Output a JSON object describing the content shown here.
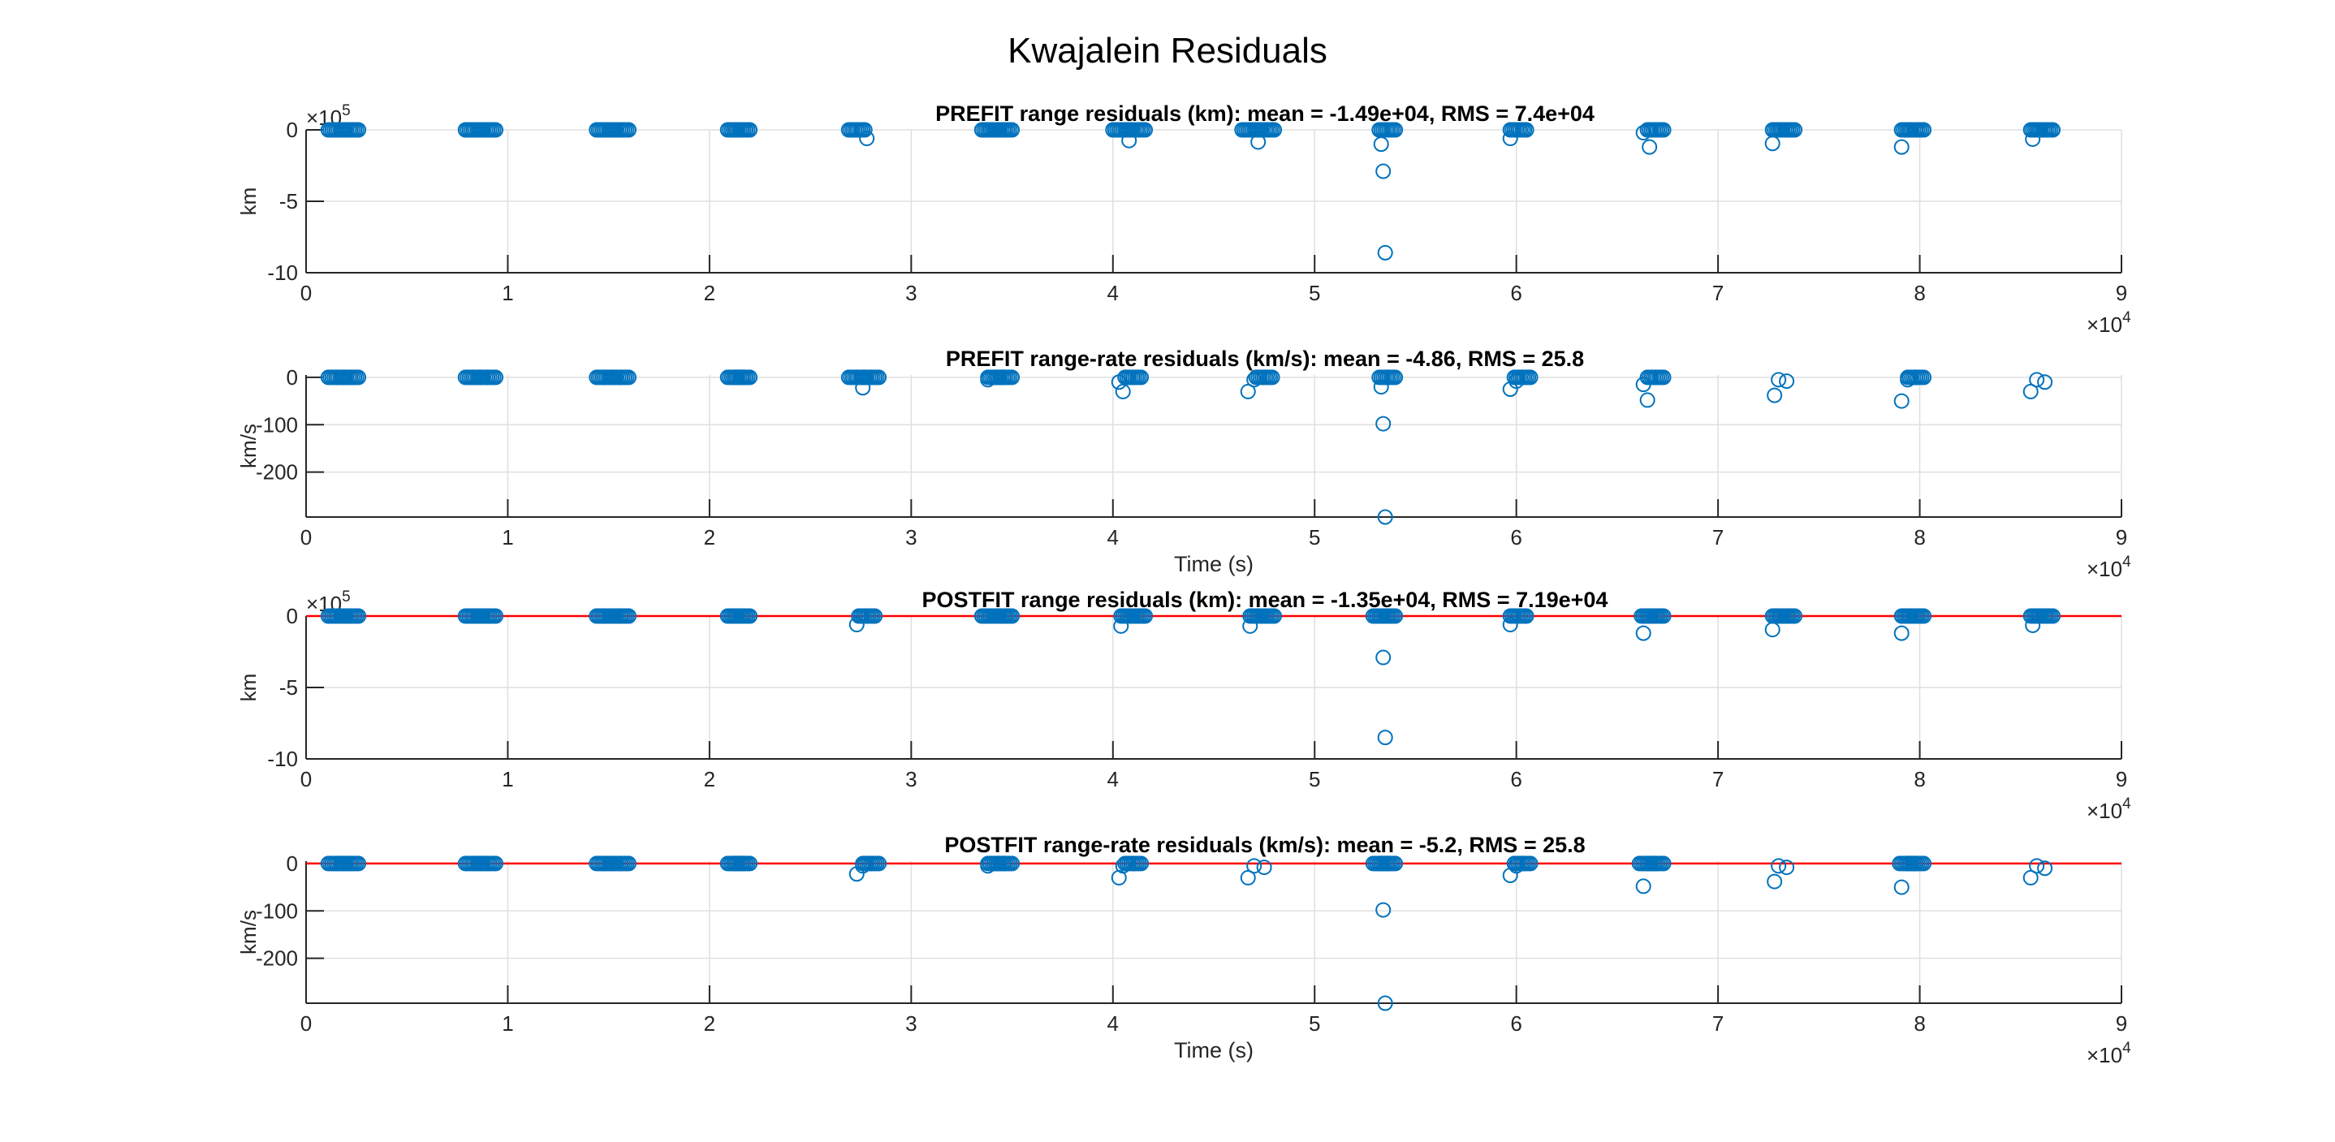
{
  "figure": {
    "title": "Kwajalein Residuals"
  },
  "colors": {
    "marker": "#0072BD",
    "zero_line": "#FF0000",
    "grid": "#DFDFDF",
    "axis": "#262626",
    "background": "#FFFFFF"
  },
  "chart_data": [
    {
      "type": "scatter",
      "title": "PREFIT range residuals (km): mean = -1.49e+04, RMS = 7.4e+04",
      "xlabel": "",
      "ylabel": "km",
      "x_exponent_label": "×10^4",
      "y_exponent_label": "×10^5",
      "xlim": [
        0,
        90000
      ],
      "ylim": [
        -1000000,
        0
      ],
      "xticks": [
        0,
        10000,
        20000,
        30000,
        40000,
        50000,
        60000,
        70000,
        80000,
        90000
      ],
      "xtick_labels": [
        "0",
        "1",
        "2",
        "3",
        "4",
        "5",
        "6",
        "7",
        "8",
        "9"
      ],
      "yticks": [
        0,
        -500000,
        -1000000
      ],
      "ytick_labels": [
        "0",
        "-5",
        "-10"
      ],
      "grid": true,
      "zero_line": false,
      "series": [
        {
          "x": [
            1500,
            2200,
            8300,
            9000,
            14800,
            15600,
            21300,
            21600,
            27300,
            27800,
            33900,
            34300,
            34600,
            40400,
            40800,
            41200,
            46800,
            47200,
            47600,
            53300,
            53400,
            53500,
            53600,
            59700,
            60100,
            66300,
            66600,
            66900,
            72700,
            73100,
            73400,
            79100,
            79500,
            79800,
            85600,
            85900,
            86200
          ],
          "y": [
            0,
            0,
            0,
            0,
            0,
            0,
            0,
            0,
            0,
            -60000,
            0,
            0,
            0,
            0,
            -75000,
            0,
            0,
            -85000,
            0,
            -100000,
            -290000,
            -860000,
            0,
            -60000,
            0,
            -20000,
            -120000,
            0,
            -95000,
            0,
            0,
            -120000,
            0,
            0,
            -65000,
            0,
            0
          ]
        }
      ]
    },
    {
      "type": "scatter",
      "title": "PREFIT range-rate residuals (km/s): mean = -4.86, RMS = 25.8",
      "xlabel": "Time (s)",
      "ylabel": "km/s",
      "x_exponent_label": "×10^4",
      "y_exponent_label": "",
      "xlim": [
        0,
        90000
      ],
      "ylim": [
        -295,
        5
      ],
      "xticks": [
        0,
        10000,
        20000,
        30000,
        40000,
        50000,
        60000,
        70000,
        80000,
        90000
      ],
      "xtick_labels": [
        "0",
        "1",
        "2",
        "3",
        "4",
        "5",
        "6",
        "7",
        "8",
        "9"
      ],
      "yticks": [
        0,
        -100,
        -200
      ],
      "ytick_labels": [
        "0",
        "-100",
        "-200"
      ],
      "grid": true,
      "zero_line": false,
      "series": [
        {
          "x": [
            1500,
            2200,
            8300,
            9000,
            14800,
            15600,
            21300,
            21600,
            27300,
            27600,
            28000,
            33800,
            34200,
            34600,
            40300,
            40500,
            41000,
            46700,
            47000,
            47500,
            53300,
            53400,
            53500,
            53600,
            59700,
            60000,
            60300,
            66300,
            66500,
            66900,
            72800,
            73000,
            73400,
            79100,
            79400,
            79800,
            85500,
            85800,
            86200
          ],
          "y": [
            0,
            0,
            0,
            0,
            0,
            0,
            0,
            0,
            0,
            -22,
            0,
            -5,
            0,
            0,
            -10,
            -30,
            0,
            -30,
            -5,
            0,
            -20,
            -98,
            -295,
            0,
            -25,
            -8,
            0,
            -15,
            -48,
            0,
            -38,
            -5,
            -8,
            -50,
            -5,
            0,
            -30,
            -5,
            -10
          ]
        }
      ]
    },
    {
      "type": "scatter",
      "title": "POSTFIT range residuals (km): mean = -1.35e+04, RMS = 7.19e+04",
      "xlabel": "",
      "ylabel": "km",
      "x_exponent_label": "×10^4",
      "y_exponent_label": "×10^5",
      "xlim": [
        0,
        90000
      ],
      "ylim": [
        -1000000,
        0
      ],
      "xticks": [
        0,
        10000,
        20000,
        30000,
        40000,
        50000,
        60000,
        70000,
        80000,
        90000
      ],
      "xtick_labels": [
        "0",
        "1",
        "2",
        "3",
        "4",
        "5",
        "6",
        "7",
        "8",
        "9"
      ],
      "yticks": [
        0,
        -500000,
        -1000000
      ],
      "ytick_labels": [
        "0",
        "-5",
        "-10"
      ],
      "grid": true,
      "zero_line": true,
      "series": [
        {
          "x": [
            1500,
            2200,
            8300,
            9000,
            14800,
            15600,
            21300,
            21600,
            27300,
            27800,
            33900,
            34300,
            34600,
            40400,
            40800,
            41200,
            46800,
            47200,
            47600,
            53300,
            53400,
            53500,
            53600,
            59700,
            60100,
            66300,
            66600,
            66900,
            72700,
            73100,
            73400,
            79100,
            79500,
            79800,
            85600,
            85900,
            86200
          ],
          "y": [
            0,
            0,
            0,
            0,
            0,
            0,
            0,
            0,
            -60000,
            0,
            0,
            0,
            0,
            -70000,
            0,
            0,
            -70000,
            0,
            0,
            0,
            -290000,
            -850000,
            0,
            -60000,
            0,
            -120000,
            0,
            0,
            -95000,
            0,
            0,
            -120000,
            0,
            0,
            -65000,
            0,
            0
          ]
        }
      ]
    },
    {
      "type": "scatter",
      "title": "POSTFIT range-rate residuals (km/s): mean = -5.2, RMS = 25.8",
      "xlabel": "Time (s)",
      "ylabel": "km/s",
      "x_exponent_label": "×10^4",
      "y_exponent_label": "",
      "xlim": [
        0,
        90000
      ],
      "ylim": [
        -295,
        5
      ],
      "xticks": [
        0,
        10000,
        20000,
        30000,
        40000,
        50000,
        60000,
        70000,
        80000,
        90000
      ],
      "xtick_labels": [
        "0",
        "1",
        "2",
        "3",
        "4",
        "5",
        "6",
        "7",
        "8",
        "9"
      ],
      "yticks": [
        0,
        -100,
        -200
      ],
      "ytick_labels": [
        "0",
        "-100",
        "-200"
      ],
      "grid": true,
      "zero_line": true,
      "series": [
        {
          "x": [
            1500,
            2200,
            8300,
            9000,
            14800,
            15600,
            21300,
            21600,
            27300,
            27600,
            28000,
            33800,
            34200,
            34600,
            40300,
            40500,
            41000,
            46700,
            47000,
            47500,
            53300,
            53400,
            53500,
            53600,
            59700,
            60000,
            60300,
            66300,
            66500,
            66900,
            72800,
            73000,
            73400,
            79100,
            79400,
            79800,
            85500,
            85800,
            86200
          ],
          "y": [
            0,
            0,
            0,
            0,
            0,
            0,
            0,
            0,
            -22,
            -5,
            0,
            -5,
            0,
            0,
            -30,
            -5,
            0,
            -30,
            -5,
            -8,
            0,
            -98,
            -295,
            0,
            -25,
            -5,
            0,
            -48,
            0,
            0,
            -38,
            -5,
            -8,
            -50,
            0,
            0,
            -30,
            -5,
            -10
          ]
        }
      ]
    }
  ]
}
